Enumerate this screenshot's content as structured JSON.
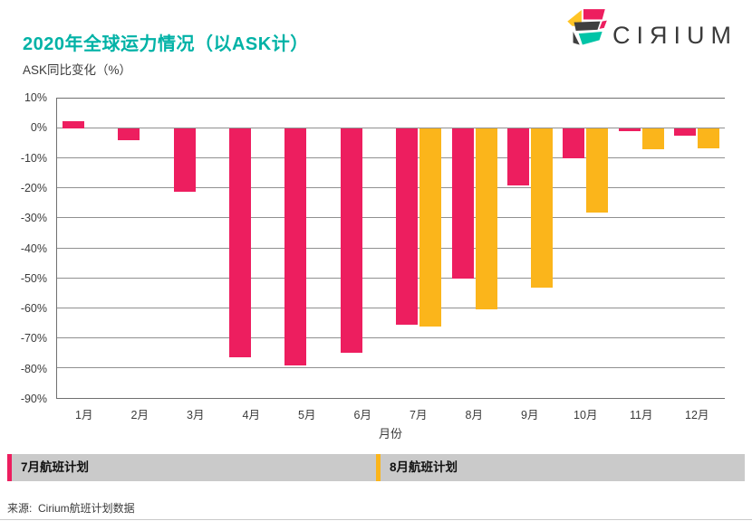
{
  "header": {
    "title": "2020年全球运力情况（以ASK计）",
    "subtitle": "ASK同比变化（%）",
    "logo_text": "CIЯIUM"
  },
  "chart_data": {
    "type": "bar",
    "title": "2020年全球运力情况（以ASK计）",
    "xlabel": "月份",
    "ylabel": "ASK同比变化（%）",
    "ylim": [
      -90,
      10
    ],
    "y_tick_step": 10,
    "y_tick_labels": [
      "10%",
      "0%",
      "-10%",
      "-20%",
      "-30%",
      "-40%",
      "-50%",
      "-60%",
      "-70%",
      "-80%",
      "-90%"
    ],
    "grid": true,
    "legend_position": "bottom",
    "categories": [
      "1月",
      "2月",
      "3月",
      "4月",
      "5月",
      "6月",
      "7月",
      "8月",
      "9月",
      "10月",
      "11月",
      "12月"
    ],
    "series": [
      {
        "name": "7月航班计划",
        "color": "#ED1E5F",
        "values": [
          2.5,
          -4,
          -21,
          -76.5,
          -79,
          -75,
          -65.5,
          -50,
          -19,
          -10,
          -1,
          -2.5
        ]
      },
      {
        "name": "8月航班计划",
        "color": "#FBB51B",
        "values": [
          null,
          null,
          null,
          null,
          null,
          null,
          -66,
          -60.5,
          -53,
          -28,
          -7,
          -6.5
        ]
      }
    ]
  },
  "footer": {
    "source": "来源:  Cirium航班计划数据"
  },
  "colors": {
    "title_teal": "#00B2A6",
    "pink": "#ED1E5F",
    "orange": "#FBB51B",
    "legend_bg": "#CACACA",
    "gridline": "#909090",
    "axis_border": "#707070",
    "logo_yellow": "#FFC425",
    "logo_dark": "#3F3F3F",
    "logo_teal": "#00C4A7"
  }
}
